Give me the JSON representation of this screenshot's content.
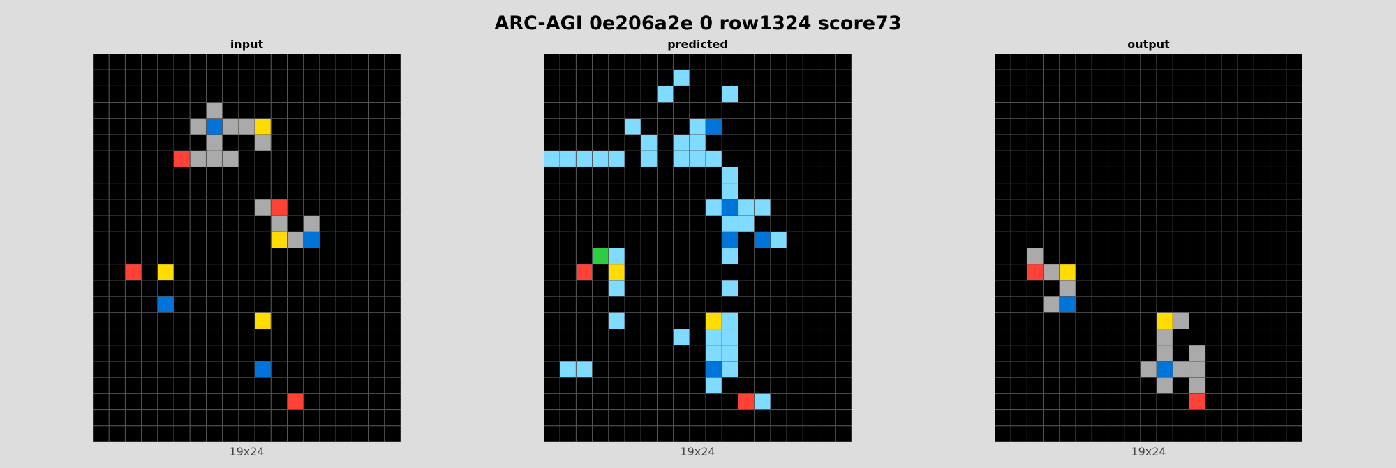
{
  "title": "ARC-AGI 0e206a2e 0 row1324 score73",
  "palette": {
    "0": "#000000",
    "1": "#0074D9",
    "2": "#FF4136",
    "3": "#2ECC40",
    "4": "#FFDC00",
    "5": "#AAAAAA",
    "6": "#F012BE",
    "7": "#FF851B",
    "8": "#7FDBFF",
    "9": "#870C25"
  },
  "grid_line_color": "#555555",
  "panels": [
    {
      "title": "input",
      "size_label": "19x24",
      "cols": 19,
      "rows": 24,
      "cells": [
        [
          3,
          7,
          5
        ],
        [
          4,
          6,
          5
        ],
        [
          4,
          7,
          1
        ],
        [
          4,
          8,
          5
        ],
        [
          4,
          9,
          5
        ],
        [
          4,
          10,
          4
        ],
        [
          5,
          7,
          5
        ],
        [
          5,
          10,
          5
        ],
        [
          6,
          5,
          2
        ],
        [
          6,
          6,
          5
        ],
        [
          6,
          7,
          5
        ],
        [
          6,
          8,
          5
        ],
        [
          9,
          10,
          5
        ],
        [
          9,
          11,
          2
        ],
        [
          10,
          11,
          5
        ],
        [
          10,
          13,
          5
        ],
        [
          11,
          11,
          4
        ],
        [
          11,
          12,
          5
        ],
        [
          11,
          13,
          1
        ],
        [
          13,
          2,
          2
        ],
        [
          13,
          4,
          4
        ],
        [
          15,
          4,
          1
        ],
        [
          16,
          10,
          4
        ],
        [
          19,
          10,
          1
        ],
        [
          21,
          12,
          2
        ]
      ]
    },
    {
      "title": "predicted",
      "size_label": "19x24",
      "cols": 19,
      "rows": 24,
      "cells": [
        [
          1,
          8,
          8
        ],
        [
          2,
          7,
          8
        ],
        [
          2,
          11,
          8
        ],
        [
          4,
          5,
          8
        ],
        [
          4,
          9,
          8
        ],
        [
          4,
          10,
          1
        ],
        [
          5,
          6,
          8
        ],
        [
          5,
          8,
          8
        ],
        [
          5,
          9,
          8
        ],
        [
          6,
          0,
          8
        ],
        [
          6,
          1,
          8
        ],
        [
          6,
          2,
          8
        ],
        [
          6,
          3,
          8
        ],
        [
          6,
          4,
          8
        ],
        [
          6,
          6,
          8
        ],
        [
          6,
          8,
          8
        ],
        [
          6,
          9,
          8
        ],
        [
          6,
          10,
          8
        ],
        [
          7,
          11,
          8
        ],
        [
          8,
          11,
          8
        ],
        [
          9,
          10,
          8
        ],
        [
          9,
          11,
          1
        ],
        [
          9,
          12,
          8
        ],
        [
          9,
          13,
          8
        ],
        [
          10,
          11,
          8
        ],
        [
          10,
          12,
          8
        ],
        [
          11,
          11,
          1
        ],
        [
          11,
          13,
          1
        ],
        [
          11,
          14,
          8
        ],
        [
          12,
          3,
          3
        ],
        [
          12,
          4,
          8
        ],
        [
          12,
          11,
          8
        ],
        [
          13,
          2,
          2
        ],
        [
          13,
          4,
          4
        ],
        [
          14,
          4,
          8
        ],
        [
          14,
          11,
          8
        ],
        [
          16,
          4,
          8
        ],
        [
          16,
          10,
          4
        ],
        [
          16,
          11,
          8
        ],
        [
          17,
          8,
          8
        ],
        [
          17,
          10,
          8
        ],
        [
          17,
          11,
          8
        ],
        [
          18,
          10,
          8
        ],
        [
          18,
          11,
          8
        ],
        [
          19,
          1,
          8
        ],
        [
          19,
          2,
          8
        ],
        [
          19,
          10,
          1
        ],
        [
          19,
          11,
          8
        ],
        [
          20,
          10,
          8
        ],
        [
          21,
          12,
          2
        ],
        [
          21,
          13,
          8
        ]
      ]
    },
    {
      "title": "output",
      "size_label": "19x24",
      "cols": 19,
      "rows": 24,
      "cells": [
        [
          12,
          2,
          5
        ],
        [
          13,
          2,
          2
        ],
        [
          13,
          3,
          5
        ],
        [
          13,
          4,
          4
        ],
        [
          14,
          4,
          5
        ],
        [
          15,
          3,
          5
        ],
        [
          15,
          4,
          1
        ],
        [
          16,
          10,
          4
        ],
        [
          16,
          11,
          5
        ],
        [
          17,
          10,
          5
        ],
        [
          18,
          10,
          5
        ],
        [
          18,
          12,
          5
        ],
        [
          19,
          9,
          5
        ],
        [
          19,
          10,
          1
        ],
        [
          19,
          11,
          5
        ],
        [
          19,
          12,
          5
        ],
        [
          20,
          10,
          5
        ],
        [
          20,
          12,
          5
        ],
        [
          21,
          12,
          2
        ]
      ]
    }
  ]
}
